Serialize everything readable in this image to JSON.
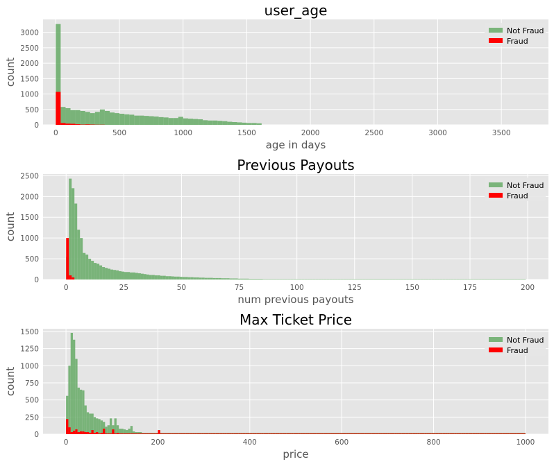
{
  "chart_data": [
    {
      "type": "bar",
      "title": "user_age",
      "xlabel": "age in days",
      "ylabel": "count",
      "xlim": [
        -100,
        3870
      ],
      "ylim": [
        0,
        3420
      ],
      "xticks": [
        0,
        500,
        1000,
        1500,
        2000,
        2500,
        3000,
        3500
      ],
      "yticks": [
        0,
        500,
        1000,
        1500,
        2000,
        2500,
        3000
      ],
      "grid": true,
      "legend_position": "top-right",
      "bin_width": 38.5,
      "series": [
        {
          "name": "Not Fraud",
          "color": "#66aa66",
          "bin_start": 0,
          "values": [
            3270,
            580,
            540,
            480,
            480,
            450,
            420,
            380,
            420,
            500,
            450,
            400,
            380,
            360,
            340,
            330,
            300,
            300,
            290,
            280,
            270,
            250,
            240,
            220,
            220,
            260,
            210,
            200,
            190,
            180,
            150,
            140,
            140,
            130,
            120,
            100,
            90,
            80,
            70,
            60,
            60,
            50
          ]
        },
        {
          "name": "Fraud",
          "color": "#ff0000",
          "bin_start": 0,
          "values": [
            1070,
            60,
            40,
            35,
            20,
            10,
            15,
            10,
            5,
            5,
            0,
            0,
            0,
            0,
            0,
            0,
            0,
            0,
            0,
            0,
            0,
            0,
            0,
            0,
            0,
            0,
            0,
            0,
            0,
            0,
            0,
            0,
            0,
            0,
            0,
            0,
            0,
            0,
            0,
            0,
            0,
            0
          ]
        }
      ]
    },
    {
      "type": "bar",
      "title": "Previous Payouts",
      "xlabel": "num previous payouts",
      "ylabel": "count",
      "xlim": [
        -10,
        209
      ],
      "ylim": [
        0,
        2540
      ],
      "xticks": [
        0,
        25,
        50,
        75,
        100,
        125,
        150,
        175,
        200
      ],
      "yticks": [
        0,
        500,
        1000,
        1500,
        2000,
        2500
      ],
      "grid": true,
      "legend_position": "top-right",
      "bin_width": 1.2,
      "series": [
        {
          "name": "Not Fraud",
          "color": "#66aa66",
          "bin_start": 0,
          "values": [
            550,
            2430,
            2200,
            1830,
            1200,
            1000,
            640,
            600,
            500,
            450,
            400,
            380,
            340,
            300,
            280,
            260,
            240,
            230,
            220,
            200,
            190,
            180,
            180,
            170,
            170,
            160,
            150,
            140,
            130,
            120,
            110,
            110,
            100,
            100,
            90,
            90,
            80,
            80,
            75,
            70,
            70,
            65,
            60,
            60,
            55,
            55,
            50,
            50,
            45,
            45,
            40,
            40,
            40,
            35,
            35,
            35,
            30,
            30,
            30,
            25,
            25,
            25,
            20,
            20,
            20,
            20,
            15,
            15,
            15,
            15,
            15,
            10,
            10,
            10,
            10,
            10,
            10,
            10,
            10,
            10,
            10,
            10,
            10,
            10,
            10,
            10,
            10,
            10,
            10,
            10,
            10,
            10,
            10,
            10,
            10,
            10,
            10,
            10,
            10,
            10,
            10,
            10,
            10,
            10,
            10,
            10,
            10,
            10,
            10,
            10,
            10,
            10,
            10,
            10,
            10,
            10,
            10,
            10,
            10,
            10,
            10,
            10,
            10,
            10,
            10,
            10,
            10,
            10,
            10,
            10,
            10,
            10,
            10,
            10,
            10,
            10,
            10,
            10,
            10,
            10,
            10,
            10,
            10,
            10,
            10,
            10,
            10,
            10,
            10,
            10,
            10,
            10,
            10,
            10,
            10,
            10,
            10,
            10,
            10,
            10,
            10,
            10,
            10,
            10,
            10,
            10
          ]
        },
        {
          "name": "Fraud",
          "color": "#ff0000",
          "bin_start": 0,
          "values": [
            1000,
            100,
            50,
            0,
            0,
            0,
            0,
            0,
            0,
            0,
            0,
            0,
            0,
            0,
            0,
            0,
            0,
            0,
            0,
            0,
            0,
            0,
            0,
            0,
            0,
            0,
            0,
            0,
            0,
            0,
            0,
            0,
            0,
            0,
            0,
            0,
            0,
            0,
            0,
            0,
            0,
            0,
            0,
            0,
            0,
            0,
            0,
            0,
            0,
            0,
            0,
            0,
            0,
            0,
            0,
            0,
            0,
            0,
            0,
            0,
            0,
            0,
            0,
            0,
            0,
            0,
            0,
            0,
            0,
            0,
            0,
            0,
            0,
            0,
            0,
            0,
            0,
            0,
            0,
            0,
            0,
            0,
            0,
            0,
            0,
            0,
            0,
            0,
            0,
            0,
            0,
            0,
            0,
            0,
            0,
            0,
            0,
            0,
            0,
            0,
            0,
            0,
            0,
            0,
            0,
            0,
            0,
            0,
            0,
            0,
            0,
            0,
            0,
            0,
            0,
            0,
            0,
            0,
            0,
            0,
            0,
            0,
            0,
            0,
            0,
            0,
            0,
            0,
            0,
            0,
            0,
            0,
            0,
            0,
            0,
            0,
            0,
            0,
            0,
            0,
            0,
            0,
            0,
            0,
            0,
            0,
            0,
            0,
            0,
            0,
            0,
            0,
            0,
            0,
            0,
            0,
            0,
            0,
            0,
            0,
            0,
            0,
            0,
            0,
            0,
            0
          ]
        }
      ]
    },
    {
      "type": "bar",
      "title": "Max Ticket Price",
      "xlabel": "price",
      "ylabel": "count",
      "xlim": [
        -50,
        1050
      ],
      "ylim": [
        0,
        1540
      ],
      "xticks": [
        0,
        200,
        400,
        600,
        800,
        1000
      ],
      "yticks": [
        0,
        250,
        500,
        750,
        1000,
        1250,
        1500
      ],
      "grid": true,
      "legend_position": "top-right",
      "bin_width": 5,
      "series": [
        {
          "name": "Not Fraud",
          "color": "#66aa66",
          "bin_start": 0,
          "values": [
            560,
            1000,
            1480,
            1380,
            1100,
            680,
            650,
            640,
            420,
            320,
            300,
            300,
            250,
            230,
            220,
            200,
            180,
            110,
            130,
            230,
            130,
            230,
            130,
            80,
            80,
            70,
            60,
            80,
            120,
            40,
            30,
            30,
            30,
            20,
            20,
            20,
            20,
            20,
            20,
            20,
            50,
            20,
            20,
            20,
            20,
            20,
            20,
            20,
            20,
            20,
            20,
            20,
            20,
            20,
            20,
            20,
            20,
            20,
            20,
            20,
            20,
            20,
            20,
            20,
            20,
            20,
            20,
            20,
            20,
            20,
            20,
            20,
            20,
            20,
            20,
            20,
            20,
            20,
            20,
            20,
            20,
            20,
            20,
            20,
            20,
            20,
            20,
            20,
            20,
            20,
            20,
            20,
            20,
            20,
            20,
            20,
            20,
            20,
            20,
            20,
            20,
            20,
            20,
            20,
            20,
            20,
            20,
            20,
            20,
            20,
            20,
            20,
            20,
            20,
            20,
            20,
            20,
            20,
            20,
            20,
            20,
            20,
            20,
            20,
            20,
            20,
            20,
            20,
            20,
            20,
            20,
            20,
            20,
            20,
            20,
            20,
            20,
            20,
            20,
            20,
            20,
            20,
            20,
            20,
            20,
            20,
            20,
            20,
            20,
            20,
            20,
            20,
            20,
            20,
            20,
            20,
            20,
            20,
            20,
            20,
            20,
            20,
            20,
            20,
            20,
            20,
            20,
            20,
            20,
            20,
            20,
            20,
            20,
            20,
            20,
            20,
            20,
            20,
            20,
            20,
            20,
            20,
            20,
            20,
            20,
            20,
            20,
            20,
            20,
            20,
            20,
            20,
            20,
            20,
            20,
            20,
            20,
            20,
            20,
            20
          ]
        },
        {
          "name": "Fraud",
          "color": "#ff0000",
          "bin_start": 0,
          "values": [
            220,
            100,
            30,
            50,
            70,
            30,
            40,
            40,
            30,
            30,
            20,
            60,
            20,
            30,
            10,
            20,
            80,
            10,
            10,
            10,
            70,
            10,
            20,
            10,
            10,
            10,
            10,
            10,
            10,
            10,
            10,
            10,
            10,
            10,
            10,
            10,
            10,
            10,
            10,
            10,
            60,
            10,
            10,
            10,
            10,
            10,
            10,
            10,
            10,
            10,
            10,
            10,
            10,
            10,
            10,
            10,
            10,
            10,
            10,
            10,
            10,
            10,
            10,
            10,
            10,
            10,
            10,
            10,
            10,
            10,
            10,
            10,
            10,
            10,
            10,
            10,
            10,
            10,
            10,
            10,
            10,
            10,
            10,
            10,
            10,
            10,
            10,
            10,
            10,
            10,
            10,
            10,
            10,
            10,
            10,
            10,
            10,
            10,
            10,
            10,
            10,
            10,
            10,
            10,
            10,
            10,
            10,
            10,
            10,
            10,
            10,
            10,
            10,
            10,
            10,
            10,
            10,
            10,
            10,
            10,
            10,
            10,
            10,
            10,
            10,
            10,
            10,
            10,
            10,
            10,
            10,
            10,
            10,
            10,
            10,
            10,
            10,
            10,
            10,
            10,
            10,
            10,
            10,
            10,
            10,
            10,
            10,
            10,
            10,
            10,
            10,
            10,
            10,
            10,
            10,
            10,
            10,
            10,
            10,
            10,
            10,
            10,
            10,
            10,
            10,
            10,
            10,
            10,
            10,
            10,
            10,
            10,
            10,
            10,
            10,
            10,
            10,
            10,
            10,
            10,
            10,
            10,
            10,
            10,
            10,
            10,
            10,
            10,
            10,
            10,
            10,
            10,
            10,
            10,
            10,
            10,
            10,
            10,
            10,
            10
          ]
        }
      ]
    }
  ]
}
